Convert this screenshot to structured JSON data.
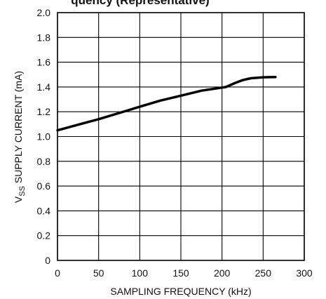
{
  "chart_data": {
    "type": "line",
    "title": "quency (Representative)",
    "xlabel": "SAMPLING FREQUENCY (kHz)",
    "ylabel": {
      "prefix": "V",
      "subscript": "SS",
      "suffix": " SUPPLY CURRENT (mA)"
    },
    "xlim": [
      0,
      300
    ],
    "ylim": [
      0,
      2.0
    ],
    "x_ticks": [
      0,
      50,
      100,
      150,
      200,
      250,
      300
    ],
    "y_ticks": [
      0,
      0.2,
      0.4,
      0.6,
      0.8,
      1.0,
      1.2,
      1.4,
      1.6,
      1.8,
      2.0
    ],
    "x_tick_labels": [
      "0",
      "50",
      "100",
      "150",
      "200",
      "250",
      "300"
    ],
    "y_tick_labels": [
      "0",
      "0.2",
      "0.4",
      "0.6",
      "0.8",
      "1.0",
      "1.2",
      "1.4",
      "1.6",
      "1.8",
      "2.0"
    ],
    "grid": true,
    "series": [
      {
        "color": "#000000",
        "x": [
          0,
          25,
          50,
          75,
          100,
          125,
          150,
          175,
          195,
          205,
          215,
          225,
          235,
          250,
          265
        ],
        "y": [
          1.05,
          1.095,
          1.14,
          1.19,
          1.24,
          1.29,
          1.33,
          1.37,
          1.39,
          1.4,
          1.43,
          1.455,
          1.47,
          1.478,
          1.48
        ]
      }
    ]
  }
}
